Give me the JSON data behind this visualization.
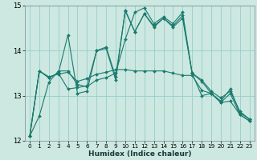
{
  "title": "",
  "xlabel": "Humidex (Indice chaleur)",
  "ylabel": "",
  "bg_color": "#cce8e0",
  "grid_color": "#99cccc",
  "line_color": "#1a7a6e",
  "xlim": [
    -0.5,
    23.5
  ],
  "ylim": [
    12,
    15
  ],
  "yticks": [
    12,
    13,
    14,
    15
  ],
  "xticks": [
    0,
    1,
    2,
    3,
    4,
    5,
    6,
    7,
    8,
    9,
    10,
    11,
    12,
    13,
    14,
    15,
    16,
    17,
    18,
    19,
    20,
    21,
    22,
    23
  ],
  "series": [
    [
      12.1,
      12.55,
      13.3,
      13.55,
      13.55,
      13.25,
      13.2,
      13.35,
      13.4,
      13.5,
      14.25,
      14.85,
      14.95,
      14.6,
      14.75,
      14.6,
      14.85,
      13.5,
      13.35,
      13.1,
      12.95,
      13.1,
      12.65,
      12.48
    ],
    [
      12.1,
      13.55,
      13.4,
      13.5,
      14.35,
      13.05,
      13.1,
      14.0,
      14.05,
      13.35,
      14.9,
      14.42,
      14.82,
      14.52,
      14.72,
      14.55,
      14.78,
      13.5,
      13.0,
      13.05,
      12.88,
      13.15,
      12.62,
      12.48
    ],
    [
      12.1,
      13.55,
      13.4,
      13.5,
      13.15,
      13.18,
      13.22,
      14.0,
      14.08,
      13.42,
      14.88,
      14.42,
      14.82,
      14.55,
      14.72,
      14.52,
      14.72,
      13.5,
      13.32,
      13.05,
      12.85,
      13.05,
      12.58,
      12.44
    ],
    [
      12.1,
      13.55,
      13.42,
      13.48,
      13.52,
      13.32,
      13.38,
      13.48,
      13.52,
      13.58,
      13.58,
      13.55,
      13.55,
      13.55,
      13.55,
      13.5,
      13.45,
      13.45,
      13.12,
      13.05,
      12.85,
      12.88,
      12.58,
      12.44
    ]
  ]
}
